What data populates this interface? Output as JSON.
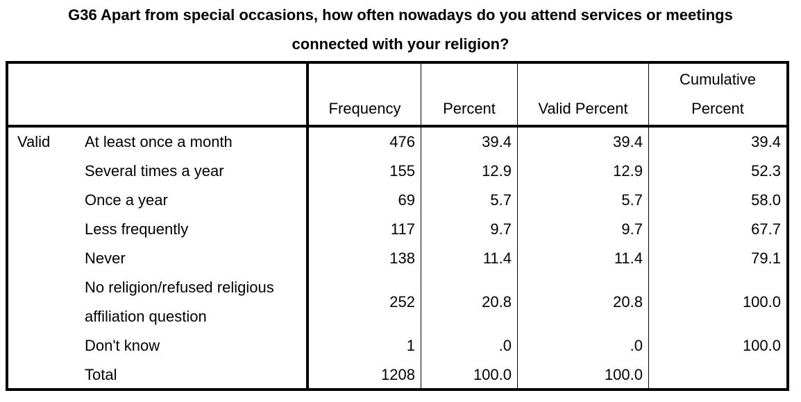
{
  "title_line1": "G36 Apart from special occasions, how often nowadays do you attend services or meetings",
  "title_line2": "connected with your religion?",
  "headers": {
    "frequency": "Frequency",
    "percent": "Percent",
    "valid_percent": "Valid Percent",
    "cumulative_line1": "Cumulative",
    "cumulative_line2": "Percent"
  },
  "group_label": "Valid",
  "rows": [
    {
      "label": "At least once a month",
      "frequency": "476",
      "percent": "39.4",
      "valid_percent": "39.4",
      "cumulative": "39.4"
    },
    {
      "label": "Several times a year",
      "frequency": "155",
      "percent": "12.9",
      "valid_percent": "12.9",
      "cumulative": "52.3"
    },
    {
      "label": "Once a year",
      "frequency": "69",
      "percent": "5.7",
      "valid_percent": "5.7",
      "cumulative": "58.0"
    },
    {
      "label": "Less frequently",
      "frequency": "117",
      "percent": "9.7",
      "valid_percent": "9.7",
      "cumulative": "67.7"
    },
    {
      "label": "Never",
      "frequency": "138",
      "percent": "11.4",
      "valid_percent": "11.4",
      "cumulative": "79.1"
    },
    {
      "label_line1": "No religion/refused religious",
      "label_line2": "affiliation question",
      "frequency": "252",
      "percent": "20.8",
      "valid_percent": "20.8",
      "cumulative": "100.0"
    },
    {
      "label": "Don't know",
      "frequency": "1",
      "percent": ".0",
      "valid_percent": ".0",
      "cumulative": "100.0"
    },
    {
      "label": "Total",
      "frequency": "1208",
      "percent": "100.0",
      "valid_percent": "100.0",
      "cumulative": ""
    }
  ]
}
